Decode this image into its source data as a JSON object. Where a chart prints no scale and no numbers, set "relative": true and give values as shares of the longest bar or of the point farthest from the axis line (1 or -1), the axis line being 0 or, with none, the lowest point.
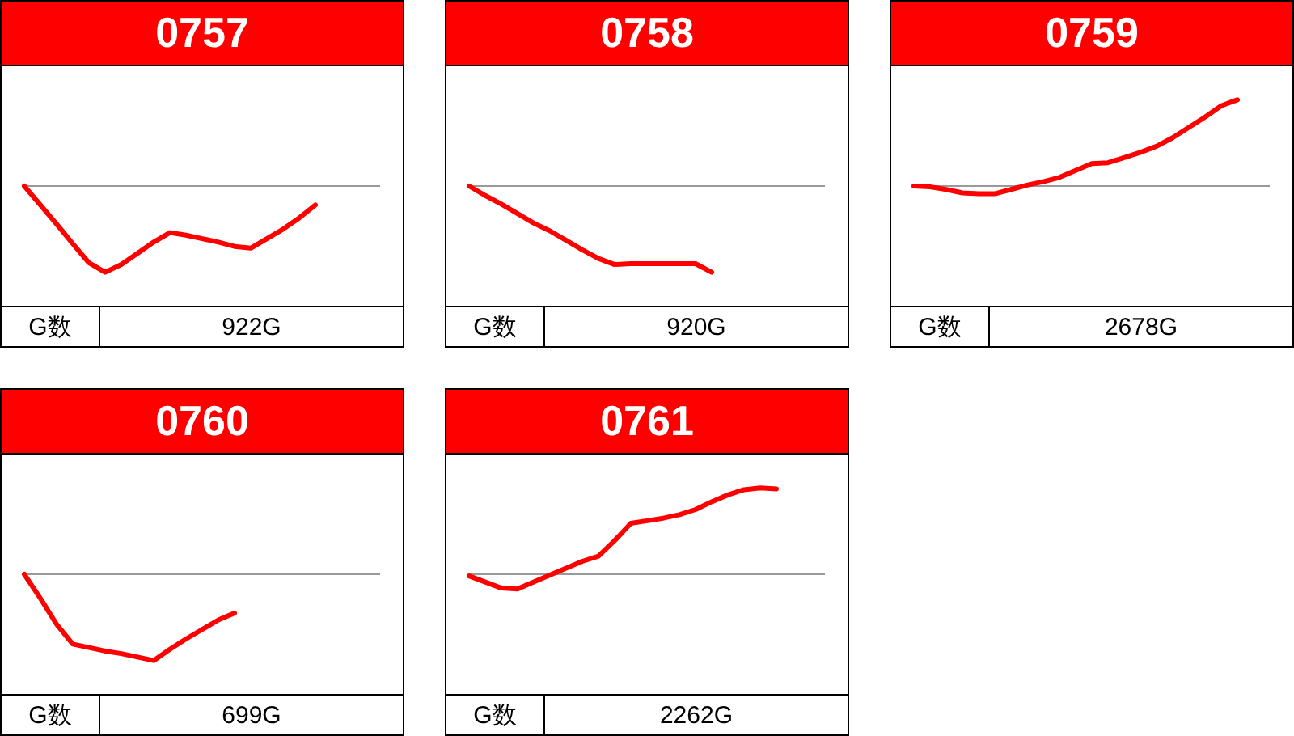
{
  "chart_data": [
    {
      "type": "line",
      "title": "0757",
      "relative": true,
      "categories": [
        null,
        null,
        null,
        null,
        null,
        null,
        null,
        null,
        null,
        null,
        null,
        null,
        null,
        null,
        null,
        null,
        null,
        null,
        null,
        null,
        null,
        null,
        null
      ],
      "series": [
        {
          "color": "#ff0000",
          "values": [
            0,
            -0.22,
            -0.44,
            -0.67,
            -0.89,
            -1,
            -0.91,
            -0.78,
            -0.65,
            -0.54,
            -0.57,
            -0.61,
            -0.65,
            -0.7,
            -0.72,
            -0.61,
            -0.5,
            -0.37,
            -0.22,
            null,
            null,
            null,
            null
          ]
        }
      ],
      "annotations": [
        "G数",
        "922G"
      ]
    },
    {
      "type": "line",
      "title": "0758",
      "relative": true,
      "categories": [
        null,
        null,
        null,
        null,
        null,
        null,
        null,
        null,
        null,
        null,
        null,
        null,
        null,
        null,
        null,
        null,
        null,
        null,
        null,
        null,
        null,
        null,
        null
      ],
      "series": [
        {
          "color": "#ff0000",
          "values": [
            0,
            -0.11,
            -0.21,
            -0.32,
            -0.43,
            -0.52,
            -0.63,
            -0.74,
            -0.84,
            -0.91,
            -0.9,
            -0.9,
            -0.9,
            -0.9,
            -0.9,
            -1,
            null,
            null,
            null,
            null,
            null,
            null,
            null
          ]
        }
      ],
      "annotations": [
        "G数",
        "920G"
      ]
    },
    {
      "type": "line",
      "title": "0759",
      "relative": true,
      "categories": [
        null,
        null,
        null,
        null,
        null,
        null,
        null,
        null,
        null,
        null,
        null,
        null,
        null,
        null,
        null,
        null,
        null,
        null,
        null,
        null,
        null,
        null,
        null
      ],
      "series": [
        {
          "color": "#ff0000",
          "values": [
            0,
            -0.01,
            -0.04,
            -0.08,
            -0.09,
            -0.09,
            -0.04,
            0.01,
            0.05,
            0.1,
            0.18,
            0.26,
            0.27,
            0.33,
            0.39,
            0.46,
            0.56,
            0.68,
            0.8,
            0.93,
            1,
            null,
            null
          ]
        }
      ],
      "annotations": [
        "G数",
        "2678G"
      ]
    },
    {
      "type": "line",
      "title": "0760",
      "relative": true,
      "categories": [
        null,
        null,
        null,
        null,
        null,
        null,
        null,
        null,
        null,
        null,
        null,
        null,
        null,
        null,
        null,
        null,
        null,
        null,
        null,
        null,
        null,
        null,
        null
      ],
      "series": [
        {
          "color": "#ff0000",
          "values": [
            0,
            -0.28,
            -0.58,
            -0.81,
            -0.85,
            -0.89,
            -0.92,
            -0.96,
            -1,
            -0.87,
            -0.75,
            -0.64,
            -0.53,
            -0.45,
            null,
            null,
            null,
            null,
            null,
            null,
            null,
            null,
            null
          ]
        }
      ],
      "annotations": [
        "G数",
        "699G"
      ]
    },
    {
      "type": "line",
      "title": "0761",
      "relative": true,
      "categories": [
        null,
        null,
        null,
        null,
        null,
        null,
        null,
        null,
        null,
        null,
        null,
        null,
        null,
        null,
        null,
        null,
        null,
        null,
        null,
        null,
        null,
        null,
        null
      ],
      "series": [
        {
          "color": "#ff0000",
          "values": [
            -0.02,
            -0.09,
            -0.16,
            -0.17,
            -0.09,
            -0.01,
            0.07,
            0.15,
            0.21,
            0.39,
            0.59,
            0.62,
            0.65,
            0.69,
            0.75,
            0.84,
            0.92,
            0.98,
            1,
            0.99,
            null,
            null,
            null
          ]
        }
      ],
      "annotations": [
        "G数",
        "2262G"
      ]
    }
  ]
}
